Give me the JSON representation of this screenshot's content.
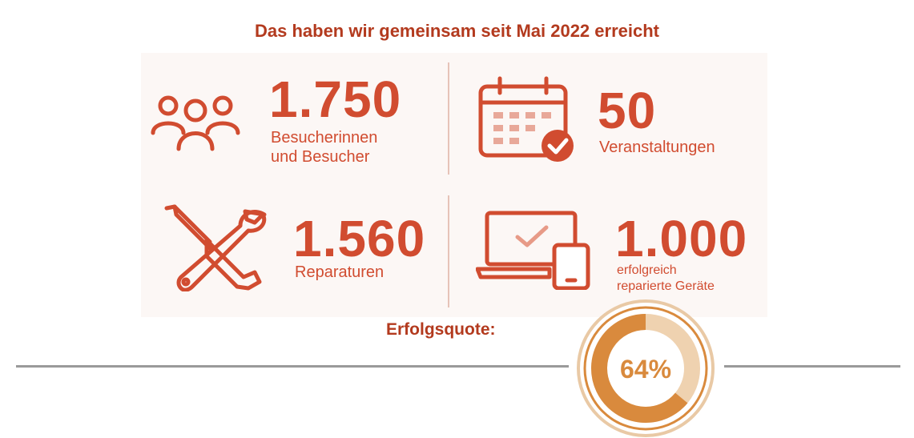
{
  "headline": "Das haben wir gemeinsam seit Mai 2022 erreicht",
  "stats": {
    "visitors": {
      "value": "1.750",
      "label_line1": "Besucherinnen",
      "label_line2": "und Besucher"
    },
    "events": {
      "value": "50",
      "label": "Veranstaltungen"
    },
    "repairs": {
      "value": "1.560",
      "label": "Reparaturen"
    },
    "devices": {
      "value": "1.000",
      "label_line1": "erfolgreich",
      "label_line2": "reparierte Geräte"
    }
  },
  "success_rate": {
    "label": "Erfolgsquote:",
    "value_text": "64%",
    "fraction": 0.64
  },
  "colors": {
    "accent": "#d14c30",
    "headline": "#b33a1e",
    "gauge": "#d98a3d",
    "gauge_light": "#efd2b0"
  },
  "icons": [
    "people-icon",
    "calendar-check-icon",
    "tools-icon",
    "devices-check-icon"
  ]
}
